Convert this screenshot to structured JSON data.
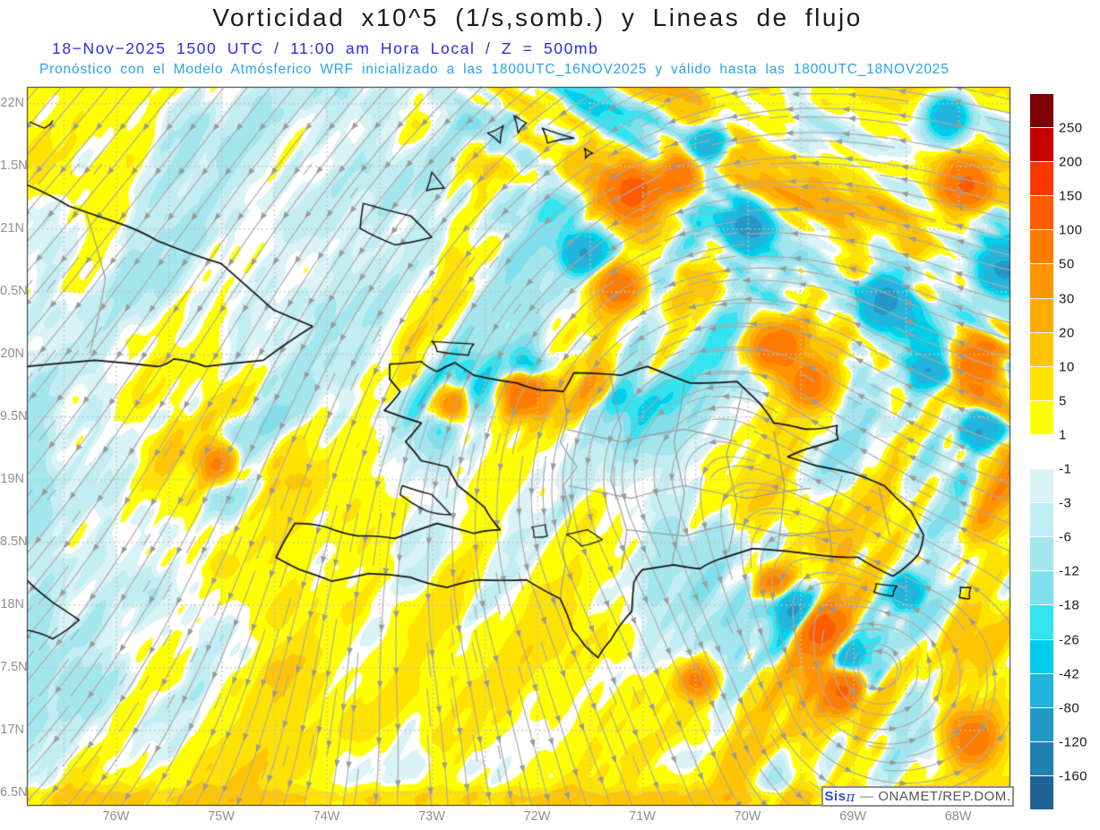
{
  "header": {
    "title": "Vorticidad x10^5 (1/s,somb.) y Lineas de flujo",
    "datetime_line": "18−Nov−2025  1500 UTC / 11:00 am Hora Local / Z = 500mb",
    "model_line": "Pronóstico con el Modelo Atmósferico WRF inicializado a las 1800UTC_16NOV2025 y válido hasta las  1800UTC_18NOV2025",
    "title_color": "#1b1b1b",
    "datetime_color": "#2c2ce0",
    "model_color": "#2ba1f2"
  },
  "axes": {
    "lat_labels": [
      "22N",
      "1.5N",
      "21N",
      "0.5N",
      "20N",
      "9.5N",
      "19N",
      "8.5N",
      "18N",
      "7.5N",
      "17N",
      "6.5N"
    ],
    "lon_labels": [
      "76W",
      "75W",
      "74W",
      "73W",
      "72W",
      "71W",
      "70W",
      "69W",
      "68W"
    ],
    "label_color": "#8f8f8f"
  },
  "colorbar": {
    "labels": [
      "250",
      "200",
      "150",
      "100",
      "50",
      "30",
      "20",
      "10",
      "5",
      "1",
      "-1",
      "-3",
      "-6",
      "-12",
      "-18",
      "-26",
      "-42",
      "-80",
      "-120",
      "-160"
    ],
    "colors_top_to_bottom": [
      "#7f0000",
      "#c60000",
      "#f93800",
      "#ff5c00",
      "#ff7c00",
      "#ff9400",
      "#ffac00",
      "#ffc600",
      "#ffe200",
      "#ffff00",
      "#ffffff",
      "#d9f3f6",
      "#c2edf2",
      "#a3e6ee",
      "#7fdfec",
      "#33e3f0",
      "#00cdea",
      "#22b4dc",
      "#2397c6",
      "#2380b2",
      "#1f6395"
    ]
  },
  "attribution": {
    "brand": "Sis",
    "pi": "π",
    "dash": "—",
    "org": "ONAMET/REP.DOM."
  },
  "map_style": {
    "coast_color": "#121212",
    "province_color": "#9a9a9a",
    "streamline_color": "#ababab",
    "arrow_color": "#9a9a9a",
    "grid_dot_color": "#c3c3c3",
    "frame_color": "#2a2a2a"
  }
}
